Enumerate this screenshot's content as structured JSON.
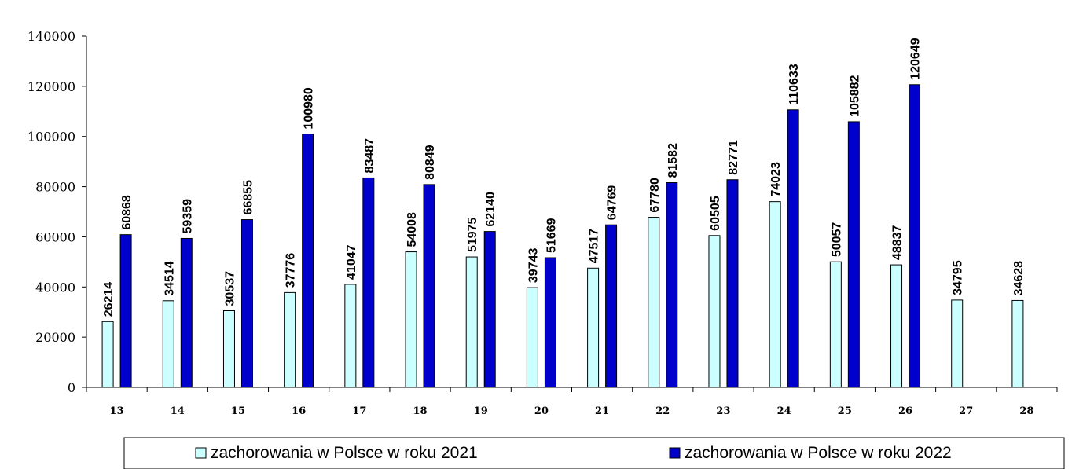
{
  "chart_data": {
    "type": "bar",
    "categories": [
      "13",
      "14",
      "15",
      "16",
      "17",
      "18",
      "19",
      "20",
      "21",
      "22",
      "23",
      "24",
      "25",
      "26",
      "27",
      "28"
    ],
    "series": [
      {
        "name": "zachorowania w Polsce w roku 2021",
        "color": "#ccffff",
        "values": [
          26214,
          34514,
          30537,
          37776,
          41047,
          54008,
          51975,
          39743,
          47517,
          67780,
          60505,
          74023,
          50057,
          48837,
          34795,
          34628
        ]
      },
      {
        "name": "zachorowania w Polsce w roku 2022",
        "color": "#0000cc",
        "values": [
          60868,
          59359,
          66855,
          100980,
          83487,
          80849,
          62140,
          51669,
          64769,
          81582,
          82771,
          110633,
          105882,
          120649,
          null,
          null
        ]
      }
    ],
    "ylim": [
      0,
      140000
    ],
    "yticks": [
      "0",
      "20000",
      "40000",
      "60000",
      "80000",
      "100000",
      "120000",
      "140000"
    ],
    "grid": false,
    "legend_position": "bottom",
    "title": "",
    "xlabel": "",
    "ylabel": ""
  }
}
